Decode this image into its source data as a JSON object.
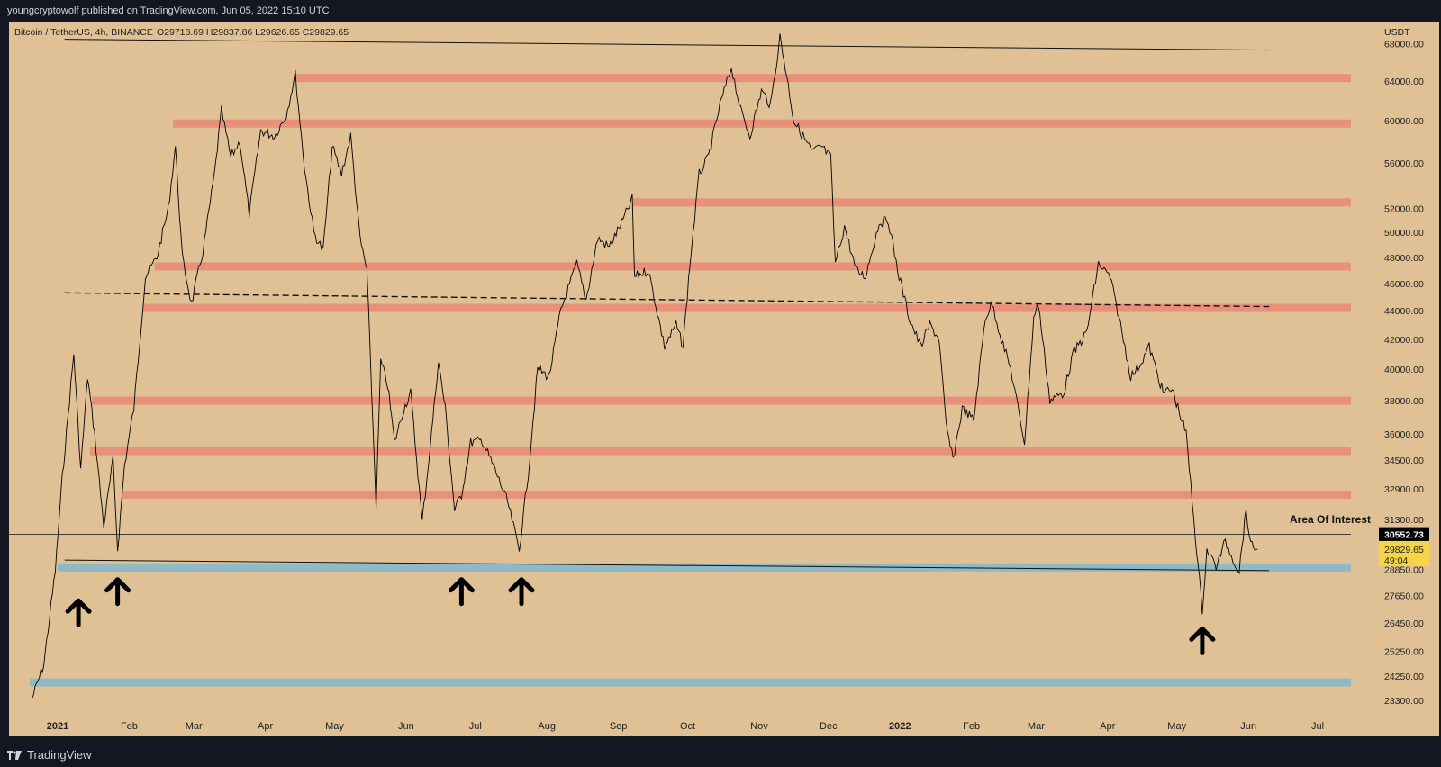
{
  "header": {
    "publisher": "youngcryptowolf published on TradingView.com, Jun 05, 2022 15:10 UTC"
  },
  "chart_info": {
    "symbol": "Bitcoin / TetherUS, 4h, BINANCE",
    "ohlc": "O29718.69  H29837.86  L29626.65  C29829.65",
    "currency": "USDT"
  },
  "footer": {
    "brand": "TradingView"
  },
  "colors": {
    "background": "#dfc195",
    "resistance": "#e8907a",
    "support": "#8fb9c4",
    "price_line": "#000000",
    "current_price_bg": "#f5d547"
  },
  "chart_data": {
    "type": "line",
    "title": "",
    "scale": "log",
    "ylim": [
      22800,
      70500
    ],
    "y_ticks": [
      68000,
      64000,
      60000,
      56000,
      52000,
      50000,
      48000,
      46000,
      44000,
      42000,
      40000,
      38000,
      36000,
      34500,
      32900,
      31300,
      28850,
      27650,
      26450,
      25250,
      24250,
      23300
    ],
    "y_tick_labels": [
      "68000.00",
      "64000.00",
      "60000.00",
      "56000.00",
      "52000.00",
      "50000.00",
      "48000.00",
      "46000.00",
      "44000.00",
      "42000.00",
      "40000.00",
      "38000.00",
      "36000.00",
      "34500.00",
      "32900.00",
      "31300.00",
      "28850.00",
      "27650.00",
      "26450.00",
      "25250.00",
      "24250.00",
      "23300.00"
    ],
    "x_ticks": [
      {
        "date": "2021-01-01",
        "label": "2021",
        "bold": true
      },
      {
        "date": "2021-02-01",
        "label": "Feb"
      },
      {
        "date": "2021-03-01",
        "label": "Mar"
      },
      {
        "date": "2021-04-01",
        "label": "Apr"
      },
      {
        "date": "2021-05-01",
        "label": "May"
      },
      {
        "date": "2021-06-01",
        "label": "Jun"
      },
      {
        "date": "2021-07-01",
        "label": "Jul"
      },
      {
        "date": "2021-08-01",
        "label": "Aug"
      },
      {
        "date": "2021-09-01",
        "label": "Sep"
      },
      {
        "date": "2021-10-01",
        "label": "Oct"
      },
      {
        "date": "2021-11-01",
        "label": "Nov"
      },
      {
        "date": "2021-12-01",
        "label": "Dec"
      },
      {
        "date": "2022-01-01",
        "label": "2022",
        "bold": true
      },
      {
        "date": "2022-02-01",
        "label": "Feb"
      },
      {
        "date": "2022-03-01",
        "label": "Mar"
      },
      {
        "date": "2022-04-01",
        "label": "Apr"
      },
      {
        "date": "2022-05-01",
        "label": "May"
      },
      {
        "date": "2022-06-01",
        "label": "Jun"
      },
      {
        "date": "2022-07-01",
        "label": "Jul"
      }
    ],
    "series": [
      {
        "color": "#000000",
        "points": [
          [
            "2020-12-21",
            23400
          ],
          [
            "2020-12-26",
            24700
          ],
          [
            "2020-12-31",
            28800
          ],
          [
            "2021-01-03",
            33500
          ],
          [
            "2021-01-08",
            41000
          ],
          [
            "2021-01-11",
            34000
          ],
          [
            "2021-01-14",
            39500
          ],
          [
            "2021-01-17",
            36000
          ],
          [
            "2021-01-21",
            31000
          ],
          [
            "2021-01-25",
            34500
          ],
          [
            "2021-01-27",
            29800
          ],
          [
            "2021-01-30",
            34200
          ],
          [
            "2021-02-03",
            37500
          ],
          [
            "2021-02-08",
            46500
          ],
          [
            "2021-02-13",
            48000
          ],
          [
            "2021-02-18",
            52000
          ],
          [
            "2021-02-21",
            57500
          ],
          [
            "2021-02-24",
            48000
          ],
          [
            "2021-02-28",
            44500
          ],
          [
            "2021-03-05",
            48500
          ],
          [
            "2021-03-10",
            55000
          ],
          [
            "2021-03-13",
            61000
          ],
          [
            "2021-03-17",
            56500
          ],
          [
            "2021-03-21",
            58000
          ],
          [
            "2021-03-25",
            51500
          ],
          [
            "2021-03-30",
            59000
          ],
          [
            "2021-04-05",
            58500
          ],
          [
            "2021-04-10",
            60500
          ],
          [
            "2021-04-14",
            64700
          ],
          [
            "2021-04-18",
            55500
          ],
          [
            "2021-04-22",
            50000
          ],
          [
            "2021-04-26",
            48500
          ],
          [
            "2021-04-30",
            57500
          ],
          [
            "2021-05-04",
            55000
          ],
          [
            "2021-05-08",
            58500
          ],
          [
            "2021-05-12",
            49500
          ],
          [
            "2021-05-15",
            47000
          ],
          [
            "2021-05-19",
            32000
          ],
          [
            "2021-05-21",
            40500
          ],
          [
            "2021-05-24",
            39000
          ],
          [
            "2021-05-27",
            35500
          ],
          [
            "2021-05-31",
            37500
          ],
          [
            "2021-06-03",
            38500
          ],
          [
            "2021-06-08",
            31200
          ],
          [
            "2021-06-12",
            36000
          ],
          [
            "2021-06-15",
            40500
          ],
          [
            "2021-06-18",
            37500
          ],
          [
            "2021-06-22",
            31800
          ],
          [
            "2021-06-25",
            32600
          ],
          [
            "2021-06-29",
            35500
          ],
          [
            "2021-07-04",
            35600
          ],
          [
            "2021-07-10",
            33800
          ],
          [
            "2021-07-15",
            32200
          ],
          [
            "2021-07-20",
            29800
          ],
          [
            "2021-07-24",
            33800
          ],
          [
            "2021-07-28",
            40000
          ],
          [
            "2021-08-02",
            39500
          ],
          [
            "2021-08-07",
            44000
          ],
          [
            "2021-08-14",
            47500
          ],
          [
            "2021-08-18",
            44800
          ],
          [
            "2021-08-23",
            49500
          ],
          [
            "2021-08-28",
            48800
          ],
          [
            "2021-09-03",
            51000
          ],
          [
            "2021-09-07",
            52800
          ],
          [
            "2021-09-08",
            46500
          ],
          [
            "2021-09-14",
            47000
          ],
          [
            "2021-09-21",
            41500
          ],
          [
            "2021-09-26",
            43000
          ],
          [
            "2021-09-29",
            41500
          ],
          [
            "2021-10-02",
            47500
          ],
          [
            "2021-10-06",
            55000
          ],
          [
            "2021-10-10",
            56500
          ],
          [
            "2021-10-15",
            61500
          ],
          [
            "2021-10-20",
            65500
          ],
          [
            "2021-10-24",
            61000
          ],
          [
            "2021-10-28",
            58500
          ],
          [
            "2021-11-02",
            63000
          ],
          [
            "2021-11-06",
            61500
          ],
          [
            "2021-11-10",
            68800
          ],
          [
            "2021-11-13",
            64500
          ],
          [
            "2021-11-16",
            60000
          ],
          [
            "2021-11-20",
            58500
          ],
          [
            "2021-11-24",
            57000
          ],
          [
            "2021-11-28",
            57500
          ],
          [
            "2021-12-02",
            56500
          ],
          [
            "2021-12-04",
            47500
          ],
          [
            "2021-12-08",
            50500
          ],
          [
            "2021-12-13",
            47000
          ],
          [
            "2021-12-17",
            46500
          ],
          [
            "2021-12-23",
            50800
          ],
          [
            "2021-12-27",
            51000
          ],
          [
            "2021-12-31",
            47000
          ],
          [
            "2022-01-05",
            43500
          ],
          [
            "2022-01-10",
            41500
          ],
          [
            "2022-01-14",
            43000
          ],
          [
            "2022-01-18",
            42000
          ],
          [
            "2022-01-21",
            36500
          ],
          [
            "2022-01-24",
            34500
          ],
          [
            "2022-01-28",
            37500
          ],
          [
            "2022-02-02",
            36800
          ],
          [
            "2022-02-07",
            43500
          ],
          [
            "2022-02-10",
            44500
          ],
          [
            "2022-02-14",
            42000
          ],
          [
            "2022-02-18",
            40000
          ],
          [
            "2022-02-24",
            35500
          ],
          [
            "2022-02-28",
            43500
          ],
          [
            "2022-03-02",
            44500
          ],
          [
            "2022-03-07",
            38000
          ],
          [
            "2022-03-13",
            38500
          ],
          [
            "2022-03-17",
            41000
          ],
          [
            "2022-03-23",
            42500
          ],
          [
            "2022-03-28",
            47500
          ],
          [
            "2022-04-02",
            46500
          ],
          [
            "2022-04-06",
            43500
          ],
          [
            "2022-04-11",
            39500
          ],
          [
            "2022-04-15",
            40300
          ],
          [
            "2022-04-19",
            41500
          ],
          [
            "2022-04-25",
            38500
          ],
          [
            "2022-04-29",
            38700
          ],
          [
            "2022-05-05",
            36000
          ],
          [
            "2022-05-09",
            30500
          ],
          [
            "2022-05-12",
            27000
          ],
          [
            "2022-05-14",
            29800
          ],
          [
            "2022-05-18",
            29000
          ],
          [
            "2022-05-22",
            30200
          ],
          [
            "2022-05-26",
            29200
          ],
          [
            "2022-05-28",
            28800
          ],
          [
            "2022-05-31",
            31800
          ],
          [
            "2022-06-02",
            30000
          ],
          [
            "2022-06-05",
            29830
          ]
        ]
      }
    ],
    "resistance_zones": [
      {
        "from": "2021-04-14",
        "price": 64300
      },
      {
        "from": "2021-02-20",
        "price": 59700
      },
      {
        "from": "2021-09-07",
        "price": 52500
      },
      {
        "from": "2021-02-12",
        "price": 47300
      },
      {
        "from": "2021-02-07",
        "price": 44200
      },
      {
        "from": "2021-01-16",
        "price": 38000
      },
      {
        "from": "2021-01-15",
        "price": 35000
      },
      {
        "from": "2021-01-29",
        "price": 32600
      }
    ],
    "support_zones": [
      {
        "from": "2021-01-01",
        "price": 28950
      },
      {
        "from": "2020-12-20",
        "price": 24000
      }
    ],
    "trendlines": [
      {
        "style": "solid",
        "from": [
          "2021-01-04",
          68500
        ],
        "to": [
          "2022-06-10",
          67300
        ]
      },
      {
        "style": "dashed",
        "from": [
          "2021-01-04",
          45300
        ],
        "to": [
          "2022-06-10",
          44300
        ]
      },
      {
        "style": "solid",
        "from": [
          "2021-01-04",
          29300
        ],
        "to": [
          "2022-06-10",
          28800
        ]
      }
    ],
    "horizontal_line": {
      "price": 30552.73,
      "label": "30552.73"
    },
    "current_price": {
      "label": "29829.65",
      "countdown": "49:04",
      "price": 29829.65
    },
    "annotation": {
      "text": "Area Of Interest"
    },
    "arrows": [
      {
        "date": "2021-01-10",
        "price": 26900
      },
      {
        "date": "2021-01-27",
        "price": 27850
      },
      {
        "date": "2021-06-25",
        "price": 27850
      },
      {
        "date": "2021-07-21",
        "price": 27850
      },
      {
        "date": "2022-05-12",
        "price": 25700
      }
    ]
  }
}
